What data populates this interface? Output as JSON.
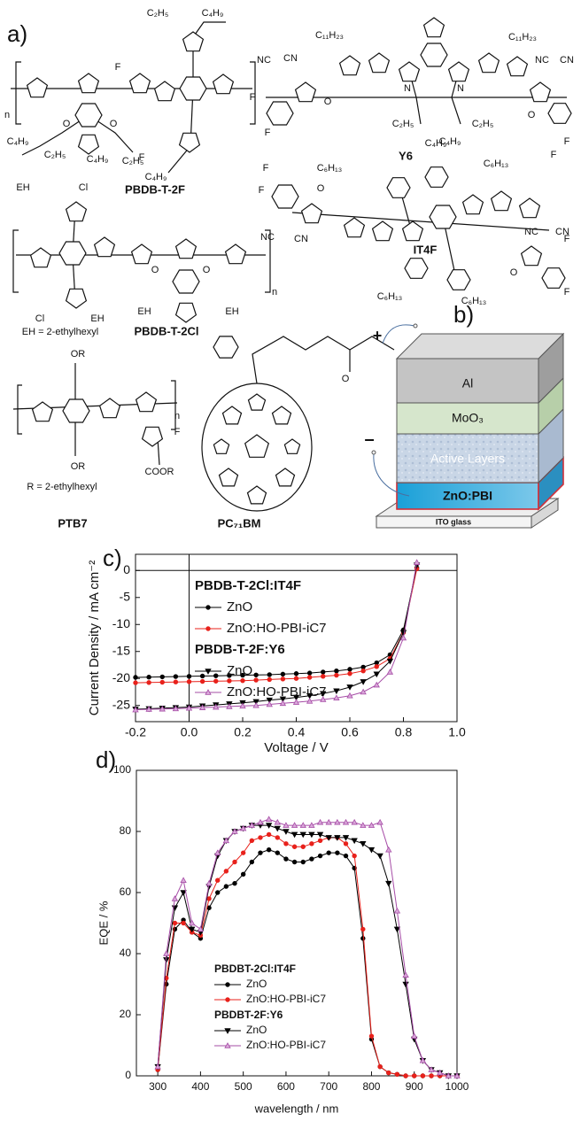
{
  "panel_labels": [
    "a)",
    "b)",
    "c)",
    "d)"
  ],
  "structures": [
    {
      "name": "PBDB-T-2F",
      "labels": [
        "C₂H₅",
        "C₄H₉",
        "F",
        "F",
        "C₄H₉",
        "C₂H₅",
        "C₄H₉",
        "C₂H₅",
        "C₄H₉",
        "O",
        "O",
        "n"
      ]
    },
    {
      "name": "Y6",
      "labels": [
        "C₁₁H₂₃",
        "C₁₁H₂₃",
        "NC",
        "CN",
        "NC",
        "CN",
        "F",
        "F",
        "F",
        "F",
        "O",
        "O",
        "N",
        "N",
        "C₂H₅",
        "C₄H₉",
        "C₂H₅",
        "C₄H₉"
      ]
    },
    {
      "name": "IT4F",
      "labels": [
        "C₆H₁₃",
        "C₆H₁₃",
        "C₆H₁₃",
        "C₆H₁₃",
        "F",
        "F",
        "F",
        "F",
        "O",
        "O",
        "NC",
        "CN",
        "NC",
        "CN"
      ]
    },
    {
      "name": "PBDB-T-2Cl",
      "labels": [
        "EH",
        "Cl",
        "Cl",
        "EH",
        "EH",
        "EH",
        "O",
        "O",
        "n"
      ],
      "note": "EH = 2-ethylhexyl"
    },
    {
      "name": "PTB7",
      "labels": [
        "OR",
        "OR",
        "COOR",
        "F",
        "n"
      ],
      "note": "R = 2-ethylhexyl"
    },
    {
      "name": "PC₇₁BM",
      "labels": [
        "O"
      ]
    }
  ],
  "device": {
    "plus": "+",
    "minus": "–",
    "layers": [
      "Al",
      "MoO₃",
      "Active Layers",
      "ZnO:PBI",
      "ITO glass"
    ]
  },
  "chart_data": [
    {
      "type": "line",
      "xlabel": "Voltage / V",
      "ylabel": "Current Density / mA cm⁻²",
      "xlim": [
        -0.2,
        1.0
      ],
      "ylim": [
        -28,
        3
      ],
      "xticks": [
        -0.2,
        {
          "value": 0,
          "label": "0.0"
        },
        0.2,
        0.4,
        0.6,
        0.8,
        {
          "value": 1,
          "label": "1.0"
        }
      ],
      "yticks": [
        -25,
        -20,
        -15,
        -10,
        -5,
        0
      ],
      "legend_titles": [
        "PBDB-T-2Cl:IT4F",
        "PBDB-T-2F:Y6"
      ],
      "x": [
        -0.2,
        -0.15,
        -0.1,
        -0.05,
        0,
        0.05,
        0.1,
        0.15,
        0.2,
        0.25,
        0.3,
        0.35,
        0.4,
        0.45,
        0.5,
        0.55,
        0.6,
        0.65,
        0.7,
        0.75,
        0.8,
        0.85
      ],
      "series": [
        {
          "name": "ZnO",
          "color": "#000000",
          "marker": "circle",
          "values": [
            -19.8,
            -19.75,
            -19.7,
            -19.65,
            -19.6,
            -19.55,
            -19.5,
            -19.45,
            -19.4,
            -19.35,
            -19.3,
            -19.2,
            -19.1,
            -19.0,
            -18.8,
            -18.6,
            -18.3,
            -17.9,
            -17.1,
            -15.6,
            -11.0,
            0.5
          ]
        },
        {
          "name": "ZnO:HO-PBI-iC7",
          "color": "#e8211b",
          "marker": "circle",
          "values": [
            -20.8,
            -20.75,
            -20.7,
            -20.65,
            -20.6,
            -20.55,
            -20.5,
            -20.45,
            -20.4,
            -20.3,
            -20.2,
            -20.1,
            -20.0,
            -19.8,
            -19.6,
            -19.4,
            -19.1,
            -18.6,
            -17.8,
            -16.3,
            -11.5,
            0.3
          ]
        },
        {
          "name": "ZnO",
          "color": "#000000",
          "marker": "triangle-down",
          "values": [
            -25.7,
            -25.6,
            -25.5,
            -25.4,
            -25.3,
            -25.1,
            -24.9,
            -24.7,
            -24.5,
            -24.3,
            -24.0,
            -23.8,
            -23.5,
            -23.2,
            -22.8,
            -22.3,
            -21.6,
            -20.6,
            -19.2,
            -16.8,
            -11.5,
            1.0
          ]
        },
        {
          "name": "ZnO:HO-PBI-iC7",
          "color": "#a64ca6",
          "marker": "triangle",
          "values": [
            -25.8,
            -25.7,
            -25.65,
            -25.6,
            -25.5,
            -25.4,
            -25.3,
            -25.2,
            -25.1,
            -25.0,
            -24.8,
            -24.6,
            -24.4,
            -24.2,
            -23.9,
            -23.6,
            -23.2,
            -22.5,
            -21.2,
            -18.8,
            -12.5,
            1.5
          ]
        }
      ]
    },
    {
      "type": "line",
      "xlabel": "wavelength / nm",
      "ylabel": "EQE / %",
      "xlim": [
        250,
        1000
      ],
      "ylim": [
        0,
        100
      ],
      "xticks": [
        300,
        400,
        500,
        600,
        700,
        800,
        900,
        1000
      ],
      "yticks": [
        0,
        20,
        40,
        60,
        80,
        100
      ],
      "legend_titles": [
        "PBDBT-2Cl:IT4F",
        "PBDBT-2F:Y6"
      ],
      "x": [
        300,
        320,
        340,
        360,
        380,
        400,
        420,
        440,
        460,
        480,
        500,
        520,
        540,
        560,
        580,
        600,
        620,
        640,
        660,
        680,
        700,
        720,
        740,
        760,
        780,
        800,
        820,
        840,
        860,
        880,
        900,
        920,
        940,
        960,
        980,
        1000
      ],
      "series": [
        {
          "name": "ZnO",
          "color": "#000000",
          "marker": "circle",
          "values": [
            2,
            30,
            48,
            51,
            47,
            45,
            55,
            60,
            62,
            63,
            66,
            70,
            73,
            74,
            73,
            71,
            70,
            70,
            71,
            72,
            73,
            73,
            72,
            68,
            45,
            12,
            3,
            1,
            0.5,
            0,
            0,
            0,
            0,
            0,
            0,
            0
          ]
        },
        {
          "name": "ZnO:HO-PBI-iC7",
          "color": "#e8211b",
          "marker": "circle",
          "values": [
            2,
            32,
            50,
            50,
            47,
            46,
            58,
            64,
            67,
            70,
            73,
            77,
            78,
            79,
            78,
            76,
            75,
            75,
            76,
            77,
            78,
            78,
            76,
            72,
            48,
            13,
            3,
            1,
            0.5,
            0,
            0,
            0,
            0,
            0,
            0,
            0
          ]
        },
        {
          "name": "ZnO",
          "color": "#000000",
          "marker": "triangle-down",
          "values": [
            3,
            38,
            55,
            60,
            48,
            47,
            62,
            72,
            77,
            80,
            81,
            82,
            82,
            82,
            81,
            80,
            79,
            79,
            79,
            79,
            78,
            78,
            78,
            77,
            76,
            74,
            72,
            63,
            48,
            30,
            12,
            5,
            2,
            1,
            0,
            0
          ]
        },
        {
          "name": "ZnO:HO-PBI-iC7",
          "color": "#a64ca6",
          "marker": "triangle",
          "values": [
            3,
            40,
            58,
            64,
            50,
            48,
            63,
            73,
            77,
            80,
            81,
            82,
            83,
            84,
            83,
            82,
            82,
            82,
            82,
            83,
            83,
            83,
            83,
            83,
            82,
            82,
            83,
            74,
            54,
            33,
            13,
            5,
            2,
            1,
            0,
            0
          ]
        }
      ]
    }
  ]
}
